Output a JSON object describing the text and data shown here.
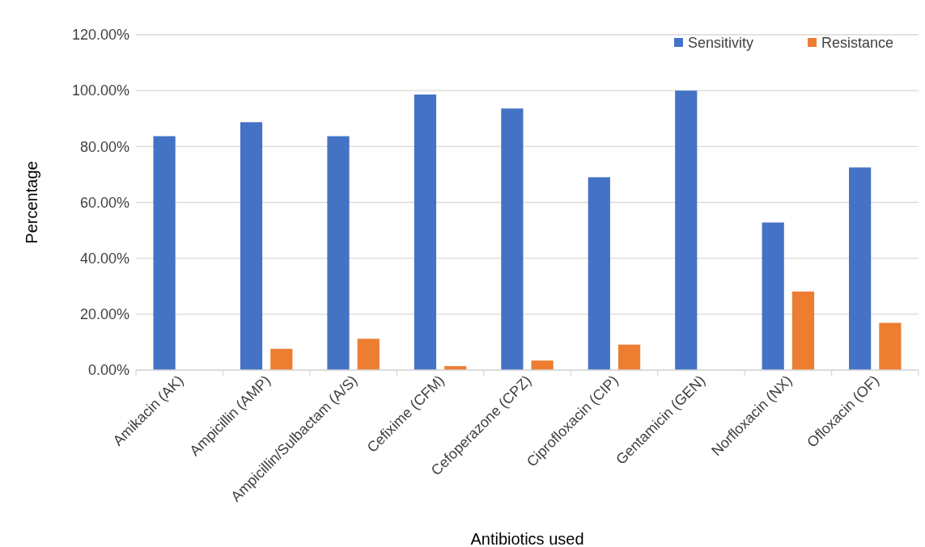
{
  "chart_data": {
    "type": "bar",
    "xlabel": "Antibiotics used",
    "ylabel": "Percentage",
    "categories": [
      "Amikacin (AK)",
      "Ampicillin (AMP)",
      "Ampicillin/Sulbactam (A/S)",
      "Cefixime (CFM)",
      "Cefoperazone (CPZ)",
      "Ciprofloxacin (CIP)",
      "Gentamicin (GEN)",
      "Norfloxacin (NX)",
      "Ofloxacin (OF)"
    ],
    "series": [
      {
        "name": "Sensitivity",
        "color": "#4472c4",
        "values": [
          83.7,
          88.7,
          83.7,
          98.6,
          93.6,
          69,
          100,
          52.8,
          72.5
        ]
      },
      {
        "name": "Resistance",
        "color": "#ed7d31",
        "values": [
          0,
          7.6,
          11.2,
          1.4,
          3.4,
          9.1,
          0,
          28.1,
          16.9
        ]
      }
    ],
    "ylim": [
      0,
      120
    ],
    "yticks": [
      {
        "value": 0,
        "label": "0.00%"
      },
      {
        "value": 20,
        "label": "20.00%"
      },
      {
        "value": 40,
        "label": "40.00%"
      },
      {
        "value": 60,
        "label": "60.00%"
      },
      {
        "value": 80,
        "label": "80.00%"
      },
      {
        "value": 100,
        "label": "100.00%"
      },
      {
        "value": 120,
        "label": "120.00%"
      }
    ],
    "grid": "y",
    "legend": "top right"
  }
}
